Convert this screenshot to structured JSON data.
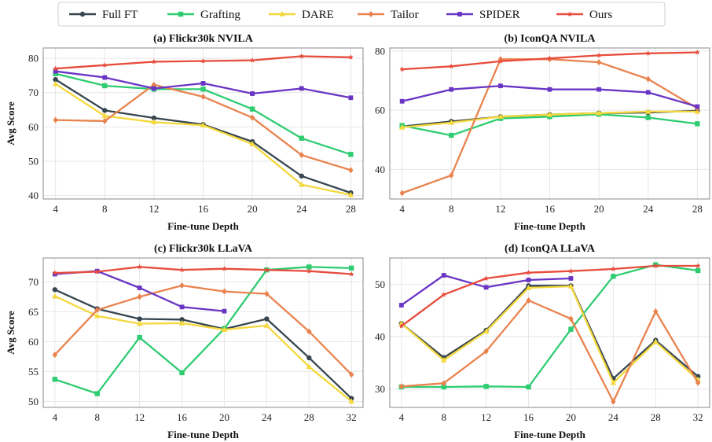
{
  "legend": [
    {
      "name": "Full FT",
      "color": "#36454f",
      "marker": "circle"
    },
    {
      "name": "Grafting",
      "color": "#2ecc71",
      "marker": "square"
    },
    {
      "name": "DARE",
      "color": "#f4d83c",
      "marker": "triangle"
    },
    {
      "name": "Tailor",
      "color": "#e9834e",
      "marker": "diamond"
    },
    {
      "name": "SPIDER",
      "color": "#6a35c4",
      "marker": "plus"
    },
    {
      "name": "Ours",
      "color": "#e74c3c",
      "marker": "star"
    }
  ],
  "chart_data": [
    {
      "type": "line",
      "title": "(a) Flickr30k NVILA",
      "xlabel": "Fine-tune Depth",
      "ylabel": "Avg Score",
      "x": [
        4,
        8,
        12,
        16,
        20,
        24,
        28
      ],
      "xlim": [
        3,
        29
      ],
      "ylim": [
        39,
        83
      ],
      "yticks": [
        40,
        50,
        60,
        70,
        80
      ],
      "grid": true,
      "series": [
        {
          "name": "Full FT",
          "values": [
            73.8,
            64.8,
            62.6,
            60.7,
            55.7,
            45.7,
            40.8
          ]
        },
        {
          "name": "Grafting",
          "values": [
            75.5,
            72.0,
            71.0,
            71.0,
            65.2,
            56.7,
            52.0
          ]
        },
        {
          "name": "DARE",
          "values": [
            72.5,
            63.2,
            61.4,
            60.5,
            55.0,
            43.2,
            40.2
          ]
        },
        {
          "name": "Tailor",
          "values": [
            62.0,
            61.7,
            72.3,
            68.8,
            62.7,
            51.8,
            47.4
          ]
        },
        {
          "name": "SPIDER",
          "values": [
            76.2,
            74.4,
            71.2,
            72.7,
            69.7,
            71.2,
            68.5
          ]
        },
        {
          "name": "Ours",
          "values": [
            77.0,
            78.0,
            79.0,
            79.2,
            79.4,
            80.6,
            80.3
          ]
        }
      ]
    },
    {
      "type": "line",
      "title": "(b) IconQA NVILA",
      "xlabel": "Fine-tune Depth",
      "ylabel": "",
      "x": [
        4,
        8,
        12,
        16,
        20,
        24,
        28
      ],
      "xlim": [
        3,
        29
      ],
      "ylim": [
        30,
        81
      ],
      "yticks": [
        40,
        60,
        80
      ],
      "grid": true,
      "series": [
        {
          "name": "Full FT",
          "values": [
            54.5,
            56.2,
            57.8,
            58.5,
            59.0,
            59.2,
            59.8
          ]
        },
        {
          "name": "Grafting",
          "values": [
            54.8,
            51.5,
            57.2,
            57.8,
            58.6,
            57.5,
            55.4
          ]
        },
        {
          "name": "DARE",
          "values": [
            54.2,
            55.8,
            57.8,
            58.5,
            59.0,
            59.5,
            59.5
          ]
        },
        {
          "name": "Tailor",
          "values": [
            32.0,
            38.0,
            77.2,
            77.2,
            76.2,
            70.5,
            60.6
          ]
        },
        {
          "name": "SPIDER",
          "values": [
            63.0,
            67.0,
            68.2,
            67.0,
            67.0,
            66.0,
            61.2
          ]
        },
        {
          "name": "Ours",
          "values": [
            73.8,
            74.8,
            76.5,
            77.5,
            78.5,
            79.2,
            79.5
          ]
        }
      ]
    },
    {
      "type": "line",
      "title": "(c) Flickr30k LLaVA",
      "xlabel": "Fine-tune Depth",
      "ylabel": "Avg Score",
      "x": [
        4,
        8,
        12,
        16,
        20,
        24,
        28,
        32
      ],
      "xlim": [
        2.9,
        33.1
      ],
      "ylim": [
        49,
        74
      ],
      "yticks": [
        50,
        55,
        60,
        65,
        70
      ],
      "grid": true,
      "series": [
        {
          "name": "Full FT",
          "values": [
            68.7,
            65.5,
            63.8,
            63.7,
            62.1,
            63.8,
            57.3,
            50.5
          ]
        },
        {
          "name": "Grafting",
          "values": [
            53.7,
            51.3,
            60.7,
            54.8,
            62.2,
            72.0,
            72.5,
            72.3
          ]
        },
        {
          "name": "DARE",
          "values": [
            67.6,
            64.3,
            63.0,
            63.1,
            62.0,
            62.7,
            55.8,
            50.0
          ]
        },
        {
          "name": "Tailor",
          "values": [
            57.8,
            65.3,
            67.5,
            69.4,
            68.4,
            68.0,
            61.7,
            54.5
          ]
        },
        {
          "name": "SPIDER",
          "values": [
            71.3,
            71.8,
            69.0,
            65.8,
            65.1,
            null,
            null,
            null
          ]
        },
        {
          "name": "Ours",
          "values": [
            71.5,
            71.7,
            72.5,
            72.0,
            72.2,
            72.0,
            71.8,
            71.3
          ]
        }
      ]
    },
    {
      "type": "line",
      "title": "(d) IconQA LLaVA",
      "xlabel": "Fine-tune Depth",
      "ylabel": "",
      "x": [
        4,
        8,
        12,
        16,
        20,
        24,
        28,
        32
      ],
      "xlim": [
        2.9,
        33.1
      ],
      "ylim": [
        26.5,
        55
      ],
      "yticks": [
        30,
        40,
        50
      ],
      "grid": true,
      "series": [
        {
          "name": "Full FT",
          "values": [
            42.5,
            36.0,
            41.2,
            49.7,
            49.7,
            32.0,
            39.3,
            32.4
          ]
        },
        {
          "name": "Grafting",
          "values": [
            30.4,
            30.4,
            30.5,
            30.4,
            41.4,
            51.5,
            53.7,
            52.6
          ]
        },
        {
          "name": "DARE",
          "values": [
            42.5,
            35.5,
            41.0,
            49.3,
            49.6,
            31.2,
            39.0,
            31.8
          ]
        },
        {
          "name": "Tailor",
          "values": [
            30.5,
            31.1,
            37.2,
            46.9,
            43.4,
            27.6,
            44.8,
            31.2
          ]
        },
        {
          "name": "SPIDER",
          "values": [
            46.0,
            51.7,
            49.4,
            50.8,
            51.1,
            null,
            null,
            null
          ]
        },
        {
          "name": "Ours",
          "values": [
            42.0,
            48.0,
            51.1,
            52.2,
            52.5,
            52.9,
            53.5,
            53.5
          ]
        }
      ]
    }
  ]
}
